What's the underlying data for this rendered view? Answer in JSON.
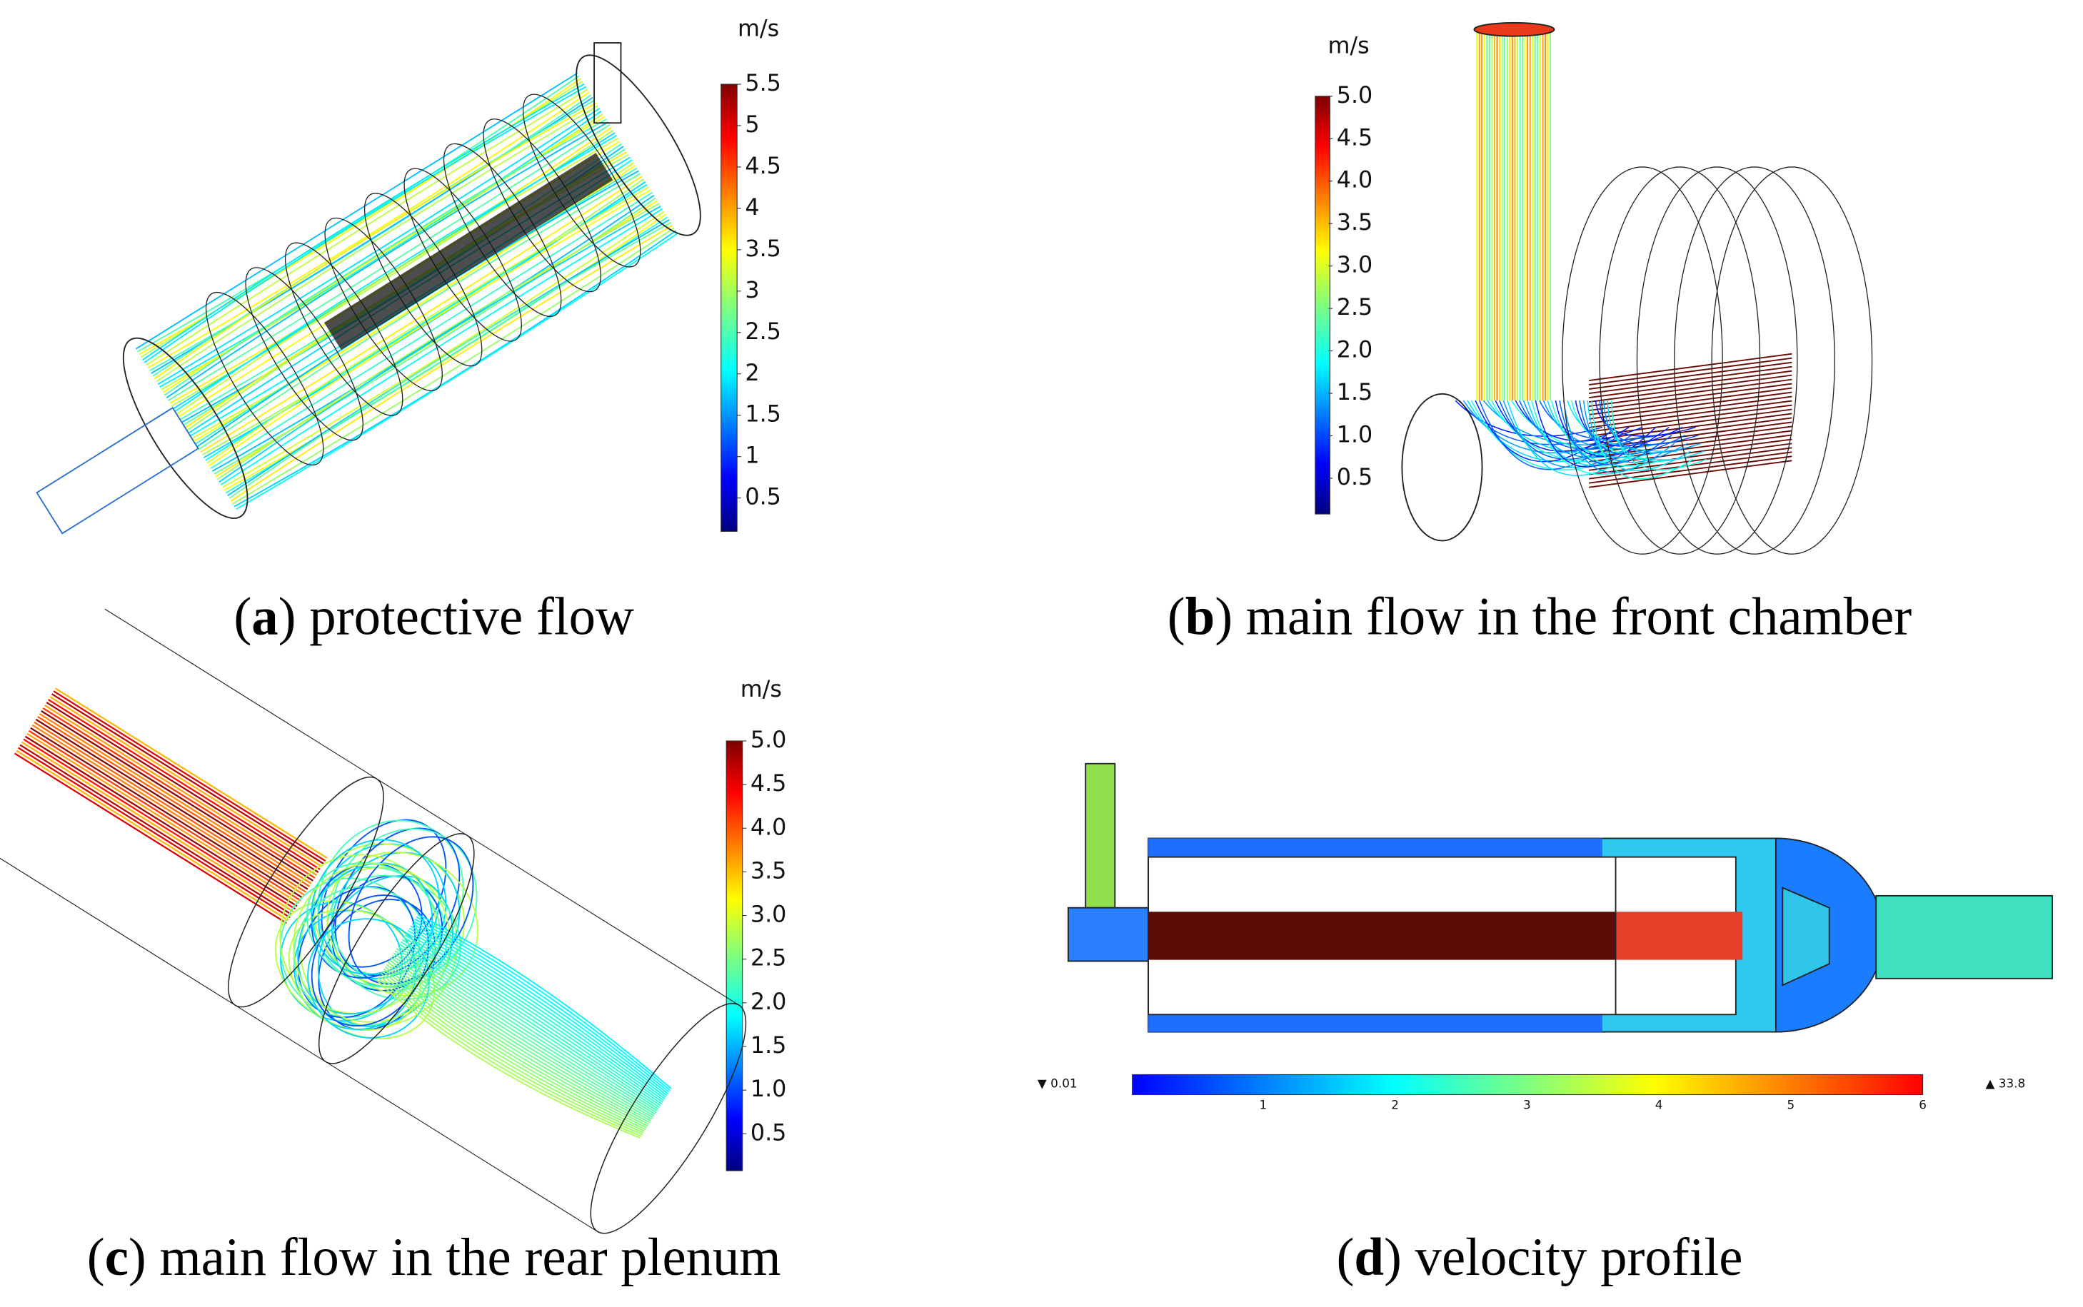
{
  "panels": [
    {
      "colorbar": {
        "unit": "m/s",
        "ticks": [
          "5.5",
          "5",
          "4.5",
          "4",
          "3.5",
          "3",
          "2.5",
          "2",
          "1.5",
          "1",
          "0.5"
        ]
      },
      "caption": {
        "open": "(",
        "letter": "a",
        "rest": ") protective flow"
      }
    },
    {
      "colorbar": {
        "unit": "m/s",
        "ticks": [
          "5.0",
          "4.5",
          "4.0",
          "3.5",
          "3.0",
          "2.5",
          "2.0",
          "1.5",
          "1.0",
          "0.5"
        ]
      },
      "caption": {
        "open": "(",
        "letter": "b",
        "rest": ") main flow in the front chamber"
      }
    },
    {
      "colorbar": {
        "unit": "m/s",
        "ticks": [
          "5.0",
          "4.5",
          "4.0",
          "3.5",
          "3.0",
          "2.5",
          "2.0",
          "1.5",
          "1.0",
          "0.5"
        ]
      },
      "caption": {
        "open": "(",
        "letter": "c",
        "rest": ") main flow in the rear plenum"
      }
    },
    {
      "colorbar": {
        "min": "▼ 0.01",
        "max": "▲ 33.8",
        "ticks": [
          "1",
          "2",
          "3",
          "4",
          "5",
          "6"
        ]
      },
      "caption": {
        "open": "(",
        "letter": "d",
        "rest": ") velocity profile"
      }
    }
  ]
}
